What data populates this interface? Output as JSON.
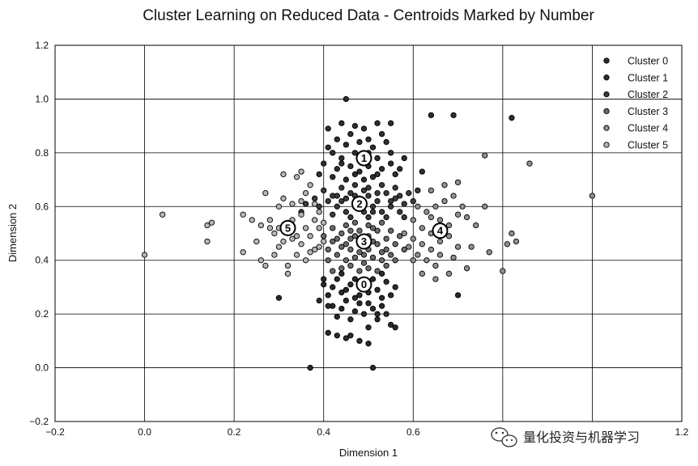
{
  "chart_data": {
    "type": "scatter",
    "title": "Cluster Learning on Reduced Data - Centroids Marked by Number",
    "xlabel": "Dimension 1",
    "ylabel": "Dimension 2",
    "xlim": [
      -0.2,
      1.2
    ],
    "ylim": [
      -0.2,
      1.2
    ],
    "xticks": [
      "−0.2",
      "0.0",
      "0.2",
      "0.4",
      "0.6",
      "0.8",
      "1.0",
      "1.2"
    ],
    "yticks": [
      "−0.2",
      "0.0",
      "0.2",
      "0.4",
      "0.6",
      "0.8",
      "1.0",
      "1.2"
    ],
    "grid": true,
    "legend_position": "top-right",
    "series": [
      {
        "name": "Cluster 0",
        "color": "#2a2a2a",
        "points": [
          [
            0.3,
            0.26
          ],
          [
            0.37,
            0.0
          ],
          [
            0.51,
            0.0
          ],
          [
            0.41,
            0.13
          ],
          [
            0.43,
            0.12
          ],
          [
            0.45,
            0.11
          ],
          [
            0.46,
            0.12
          ],
          [
            0.48,
            0.1
          ],
          [
            0.5,
            0.09
          ],
          [
            0.5,
            0.15
          ],
          [
            0.52,
            0.18
          ],
          [
            0.54,
            0.2
          ],
          [
            0.55,
            0.16
          ],
          [
            0.56,
            0.15
          ],
          [
            0.42,
            0.23
          ],
          [
            0.44,
            0.22
          ],
          [
            0.45,
            0.25
          ],
          [
            0.47,
            0.21
          ],
          [
            0.48,
            0.27
          ],
          [
            0.5,
            0.24
          ],
          [
            0.51,
            0.22
          ],
          [
            0.53,
            0.26
          ],
          [
            0.52,
            0.29
          ],
          [
            0.49,
            0.3
          ],
          [
            0.46,
            0.31
          ],
          [
            0.44,
            0.28
          ],
          [
            0.42,
            0.3
          ],
          [
            0.4,
            0.31
          ],
          [
            0.41,
            0.27
          ],
          [
            0.47,
            0.26
          ],
          [
            0.49,
            0.2
          ],
          [
            0.43,
            0.19
          ],
          [
            0.46,
            0.18
          ],
          [
            0.53,
            0.23
          ],
          [
            0.55,
            0.27
          ],
          [
            0.56,
            0.3
          ],
          [
            0.45,
            0.29
          ],
          [
            0.5,
            0.28
          ],
          [
            0.48,
            0.24
          ],
          [
            0.52,
            0.2
          ],
          [
            0.41,
            0.23
          ],
          [
            0.39,
            0.25
          ],
          [
            0.54,
            0.32
          ],
          [
            0.43,
            0.33
          ],
          [
            0.47,
            0.33
          ],
          [
            0.51,
            0.33
          ],
          [
            0.7,
            0.27
          ],
          [
            0.4,
            0.33
          ],
          [
            0.44,
            0.35
          ],
          [
            0.53,
            0.35
          ]
        ]
      },
      {
        "name": "Cluster 1",
        "color": "#2e2e2e",
        "points": [
          [
            0.45,
            1.0
          ],
          [
            0.64,
            0.94
          ],
          [
            0.69,
            0.94
          ],
          [
            0.82,
            0.93
          ],
          [
            0.41,
            0.89
          ],
          [
            0.44,
            0.91
          ],
          [
            0.47,
            0.9
          ],
          [
            0.49,
            0.89
          ],
          [
            0.52,
            0.91
          ],
          [
            0.55,
            0.91
          ],
          [
            0.43,
            0.85
          ],
          [
            0.46,
            0.87
          ],
          [
            0.48,
            0.84
          ],
          [
            0.5,
            0.85
          ],
          [
            0.53,
            0.87
          ],
          [
            0.51,
            0.82
          ],
          [
            0.45,
            0.83
          ],
          [
            0.42,
            0.8
          ],
          [
            0.47,
            0.8
          ],
          [
            0.54,
            0.84
          ],
          [
            0.44,
            0.78
          ],
          [
            0.49,
            0.78
          ],
          [
            0.52,
            0.78
          ],
          [
            0.55,
            0.8
          ],
          [
            0.58,
            0.78
          ],
          [
            0.46,
            0.75
          ],
          [
            0.5,
            0.75
          ],
          [
            0.53,
            0.74
          ],
          [
            0.4,
            0.76
          ],
          [
            0.43,
            0.74
          ],
          [
            0.47,
            0.72
          ],
          [
            0.51,
            0.71
          ],
          [
            0.56,
            0.72
          ],
          [
            0.62,
            0.73
          ],
          [
            0.39,
            0.72
          ],
          [
            0.42,
            0.71
          ],
          [
            0.45,
            0.7
          ],
          [
            0.48,
            0.73
          ],
          [
            0.55,
            0.76
          ],
          [
            0.52,
            0.72
          ],
          [
            0.49,
            0.7
          ],
          [
            0.41,
            0.82
          ],
          [
            0.57,
            0.74
          ],
          [
            0.5,
            0.8
          ],
          [
            0.44,
            0.76
          ]
        ]
      },
      {
        "name": "Cluster 2",
        "color": "#3a3a3a",
        "points": [
          [
            0.4,
            0.66
          ],
          [
            0.42,
            0.64
          ],
          [
            0.44,
            0.62
          ],
          [
            0.46,
            0.65
          ],
          [
            0.48,
            0.63
          ],
          [
            0.5,
            0.64
          ],
          [
            0.52,
            0.62
          ],
          [
            0.54,
            0.65
          ],
          [
            0.56,
            0.63
          ],
          [
            0.58,
            0.61
          ],
          [
            0.43,
            0.6
          ],
          [
            0.45,
            0.58
          ],
          [
            0.47,
            0.6
          ],
          [
            0.49,
            0.58
          ],
          [
            0.51,
            0.6
          ],
          [
            0.53,
            0.58
          ],
          [
            0.55,
            0.6
          ],
          [
            0.57,
            0.58
          ],
          [
            0.41,
            0.62
          ],
          [
            0.39,
            0.6
          ],
          [
            0.44,
            0.67
          ],
          [
            0.47,
            0.68
          ],
          [
            0.5,
            0.67
          ],
          [
            0.53,
            0.68
          ],
          [
            0.56,
            0.67
          ],
          [
            0.59,
            0.65
          ],
          [
            0.6,
            0.62
          ],
          [
            0.38,
            0.63
          ],
          [
            0.36,
            0.61
          ],
          [
            0.35,
            0.58
          ],
          [
            0.42,
            0.57
          ],
          [
            0.46,
            0.56
          ],
          [
            0.5,
            0.56
          ],
          [
            0.54,
            0.56
          ],
          [
            0.58,
            0.56
          ],
          [
            0.48,
            0.61
          ],
          [
            0.52,
            0.65
          ],
          [
            0.45,
            0.63
          ],
          [
            0.55,
            0.62
          ],
          [
            0.49,
            0.66
          ],
          [
            0.61,
            0.66
          ],
          [
            0.43,
            0.64
          ],
          [
            0.57,
            0.64
          ],
          [
            0.51,
            0.58
          ],
          [
            0.47,
            0.64
          ]
        ]
      },
      {
        "name": "Cluster 3",
        "color": "#6a6a6a",
        "points": [
          [
            0.44,
            0.5
          ],
          [
            0.46,
            0.48
          ],
          [
            0.48,
            0.51
          ],
          [
            0.5,
            0.49
          ],
          [
            0.52,
            0.51
          ],
          [
            0.54,
            0.48
          ],
          [
            0.42,
            0.47
          ],
          [
            0.44,
            0.45
          ],
          [
            0.46,
            0.44
          ],
          [
            0.48,
            0.46
          ],
          [
            0.5,
            0.44
          ],
          [
            0.52,
            0.46
          ],
          [
            0.54,
            0.44
          ],
          [
            0.56,
            0.46
          ],
          [
            0.43,
            0.42
          ],
          [
            0.45,
            0.4
          ],
          [
            0.47,
            0.41
          ],
          [
            0.49,
            0.39
          ],
          [
            0.51,
            0.41
          ],
          [
            0.53,
            0.4
          ],
          [
            0.55,
            0.42
          ],
          [
            0.41,
            0.44
          ],
          [
            0.4,
            0.49
          ],
          [
            0.42,
            0.52
          ],
          [
            0.45,
            0.53
          ],
          [
            0.47,
            0.54
          ],
          [
            0.5,
            0.53
          ],
          [
            0.53,
            0.54
          ],
          [
            0.55,
            0.51
          ],
          [
            0.57,
            0.49
          ],
          [
            0.58,
            0.44
          ],
          [
            0.46,
            0.38
          ],
          [
            0.48,
            0.36
          ],
          [
            0.5,
            0.37
          ],
          [
            0.52,
            0.36
          ],
          [
            0.44,
            0.37
          ],
          [
            0.49,
            0.47
          ],
          [
            0.47,
            0.49
          ],
          [
            0.51,
            0.47
          ],
          [
            0.43,
            0.48
          ],
          [
            0.56,
            0.4
          ],
          [
            0.41,
            0.4
          ],
          [
            0.45,
            0.46
          ],
          [
            0.53,
            0.43
          ],
          [
            0.49,
            0.42
          ],
          [
            0.51,
            0.52
          ],
          [
            0.46,
            0.51
          ],
          [
            0.54,
            0.38
          ],
          [
            0.42,
            0.36
          ],
          [
            0.48,
            0.43
          ]
        ]
      },
      {
        "name": "Cluster 4",
        "color": "#909090",
        "points": [
          [
            0.6,
            0.55
          ],
          [
            0.62,
            0.52
          ],
          [
            0.64,
            0.5
          ],
          [
            0.66,
            0.55
          ],
          [
            0.68,
            0.53
          ],
          [
            0.7,
            0.57
          ],
          [
            0.72,
            0.56
          ],
          [
            0.6,
            0.48
          ],
          [
            0.62,
            0.46
          ],
          [
            0.64,
            0.44
          ],
          [
            0.66,
            0.47
          ],
          [
            0.68,
            0.49
          ],
          [
            0.7,
            0.45
          ],
          [
            0.63,
            0.58
          ],
          [
            0.61,
            0.6
          ],
          [
            0.65,
            0.6
          ],
          [
            0.67,
            0.62
          ],
          [
            0.69,
            0.64
          ],
          [
            0.71,
            0.6
          ],
          [
            0.58,
            0.5
          ],
          [
            0.59,
            0.45
          ],
          [
            0.61,
            0.42
          ],
          [
            0.63,
            0.4
          ],
          [
            0.66,
            0.42
          ],
          [
            0.62,
            0.35
          ],
          [
            0.65,
            0.33
          ],
          [
            0.68,
            0.35
          ],
          [
            0.72,
            0.37
          ],
          [
            0.73,
            0.45
          ],
          [
            0.76,
            0.6
          ],
          [
            0.77,
            0.43
          ],
          [
            0.8,
            0.36
          ],
          [
            0.81,
            0.46
          ],
          [
            0.82,
            0.5
          ],
          [
            0.83,
            0.47
          ],
          [
            0.86,
            0.76
          ],
          [
            0.76,
            0.79
          ],
          [
            1.0,
            0.64
          ],
          [
            0.67,
            0.68
          ],
          [
            0.64,
            0.66
          ],
          [
            0.7,
            0.69
          ],
          [
            0.74,
            0.53
          ],
          [
            0.69,
            0.41
          ],
          [
            0.64,
            0.56
          ],
          [
            0.6,
            0.4
          ],
          [
            0.65,
            0.38
          ]
        ]
      },
      {
        "name": "Cluster 5",
        "color": "#b5b5b5",
        "points": [
          [
            0.0,
            0.42
          ],
          [
            0.04,
            0.57
          ],
          [
            0.14,
            0.47
          ],
          [
            0.15,
            0.54
          ],
          [
            0.14,
            0.53
          ],
          [
            0.22,
            0.43
          ],
          [
            0.22,
            0.57
          ],
          [
            0.25,
            0.47
          ],
          [
            0.26,
            0.4
          ],
          [
            0.27,
            0.38
          ],
          [
            0.27,
            0.65
          ],
          [
            0.28,
            0.55
          ],
          [
            0.29,
            0.5
          ],
          [
            0.3,
            0.45
          ],
          [
            0.3,
            0.6
          ],
          [
            0.31,
            0.63
          ],
          [
            0.32,
            0.38
          ],
          [
            0.32,
            0.35
          ],
          [
            0.33,
            0.48
          ],
          [
            0.33,
            0.55
          ],
          [
            0.34,
            0.42
          ],
          [
            0.35,
            0.57
          ],
          [
            0.35,
            0.46
          ],
          [
            0.36,
            0.52
          ],
          [
            0.36,
            0.65
          ],
          [
            0.37,
            0.49
          ],
          [
            0.38,
            0.44
          ],
          [
            0.38,
            0.55
          ],
          [
            0.39,
            0.52
          ],
          [
            0.4,
            0.47
          ],
          [
            0.31,
            0.72
          ],
          [
            0.34,
            0.71
          ],
          [
            0.35,
            0.73
          ],
          [
            0.37,
            0.68
          ],
          [
            0.28,
            0.52
          ],
          [
            0.33,
            0.61
          ],
          [
            0.39,
            0.58
          ],
          [
            0.36,
            0.4
          ],
          [
            0.3,
            0.52
          ],
          [
            0.34,
            0.49
          ],
          [
            0.26,
            0.53
          ],
          [
            0.29,
            0.42
          ],
          [
            0.38,
            0.61
          ],
          [
            0.37,
            0.43
          ],
          [
            0.31,
            0.47
          ],
          [
            0.24,
            0.55
          ],
          [
            0.35,
            0.62
          ],
          [
            0.32,
            0.51
          ],
          [
            0.4,
            0.54
          ],
          [
            0.39,
            0.45
          ]
        ]
      }
    ],
    "centroids": [
      {
        "label": "0",
        "x": 0.49,
        "y": 0.31
      },
      {
        "label": "1",
        "x": 0.49,
        "y": 0.78
      },
      {
        "label": "2",
        "x": 0.48,
        "y": 0.61
      },
      {
        "label": "3",
        "x": 0.49,
        "y": 0.47
      },
      {
        "label": "4",
        "x": 0.66,
        "y": 0.51
      },
      {
        "label": "5",
        "x": 0.32,
        "y": 0.52
      }
    ]
  },
  "watermark": {
    "icon": "wechat-icon",
    "text": "量化投资与机器学习"
  }
}
